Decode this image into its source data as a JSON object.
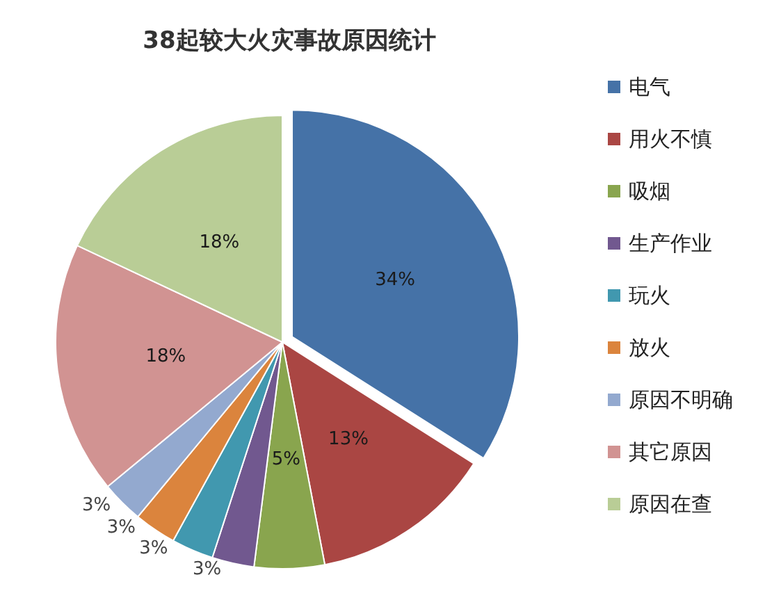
{
  "chart_data": {
    "type": "pie",
    "title": "38起较大火灾事故原因统计",
    "categories": [
      "电气",
      "用火不慎",
      "吸烟",
      "生产作业",
      "玩火",
      "放火",
      "原因不明确",
      "其它原因",
      "原因在查"
    ],
    "values": [
      34,
      13,
      5,
      3,
      3,
      3,
      3,
      18,
      18
    ],
    "value_labels": [
      "34%",
      "13%",
      "5%",
      "3%",
      "3%",
      "3%",
      "3%",
      "18%",
      "18%"
    ],
    "colors": [
      "#4572a7",
      "#aa4643",
      "#89a54e",
      "#71588f",
      "#4198af",
      "#db843d",
      "#93a9cf",
      "#d19392",
      "#b9cd96"
    ],
    "legend": "right"
  }
}
